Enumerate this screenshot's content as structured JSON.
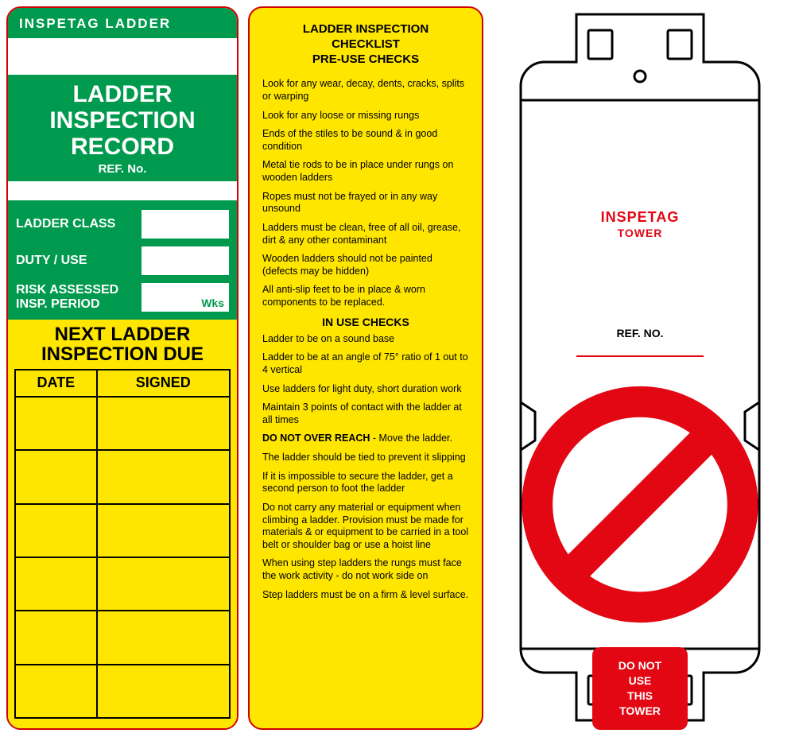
{
  "tag1": {
    "brand": "INSPETAG LADDER",
    "title_lines": [
      "LADDER",
      "INSPECTION",
      "RECORD"
    ],
    "ref_label": "REF. No.",
    "fields": [
      {
        "label": "LADDER CLASS",
        "suffix": ""
      },
      {
        "label": "DUTY / USE",
        "suffix": ""
      },
      {
        "label": "RISK ASSESSED\nINSP. PERIOD",
        "suffix": "Wks"
      }
    ],
    "due_title": "NEXT LADDER INSPECTION DUE",
    "table": {
      "columns": [
        "DATE",
        "SIGNED"
      ],
      "row_count": 6
    },
    "colors": {
      "green": "#009a4e",
      "yellow": "#ffe600",
      "border_red": "#d00000",
      "white": "#ffffff",
      "black": "#000000"
    }
  },
  "tag2": {
    "heading": "LADDER INSPECTION\nCHECKLIST\nPRE-USE CHECKS",
    "preuse": [
      "Look for any wear, decay, dents, cracks, splits or warping",
      "Look for any loose or missing rungs",
      "Ends of the stiles to be sound & in good condition",
      "Metal tie rods to be in place under rungs on wooden ladders",
      "Ropes must not be frayed or in any way unsound",
      "Ladders must be clean, free of all oil, grease, dirt & any other contaminant",
      "Wooden ladders should not be painted (defects may be hidden)",
      "All anti-slip feet to be in place & worn components to be replaced."
    ],
    "inuse_heading": "IN USE CHECKS",
    "inuse": [
      "Ladder to be on a sound base",
      "Ladder to be at an angle of 75° ratio of 1 out to 4 vertical",
      "Use ladders for light duty, short duration work",
      "Maintain 3 points of contact with the ladder at all times"
    ],
    "do_not_overreach_bold": "DO NOT OVER REACH",
    "do_not_overreach_rest": " - Move the ladder.",
    "inuse2": [
      "The ladder should be tied to prevent it slipping",
      "If it is impossible to secure the ladder, get a second person to foot the ladder",
      "Do not carry any material or equipment when climbing a ladder. Provision must be made for materials & or equipment to be carried in a tool belt or shoulder bag or use a hoist line",
      "When using step ladders the rungs must face the work activity - do not work side on",
      "Step ladders must be on a firm & level surface."
    ],
    "colors": {
      "yellow": "#ffe600",
      "border_red": "#d00000",
      "text": "#000000"
    }
  },
  "tag3": {
    "brand_line1": "INSPETAG",
    "brand_line2": "TOWER",
    "ref_label": "REF. NO.",
    "warning_lines": [
      "DO NOT",
      "USE",
      "THIS",
      "TOWER"
    ],
    "colors": {
      "outline": "#000000",
      "red": "#e30613",
      "white": "#ffffff"
    }
  }
}
